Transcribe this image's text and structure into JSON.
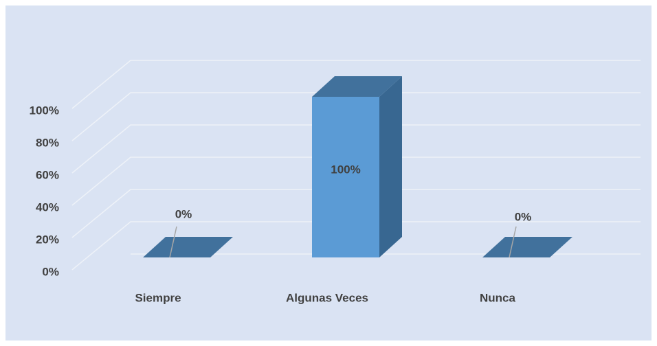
{
  "chart_data": {
    "type": "bar3d",
    "categories": [
      "Siempre",
      "Algunas Veces",
      "Nunca"
    ],
    "values": [
      0,
      100,
      0
    ],
    "value_labels": [
      "0%",
      "100%",
      "0%"
    ],
    "color": "#5b9bd5",
    "ylim": [
      0,
      100
    ],
    "yticks": [
      {
        "value": 0,
        "label": "0%"
      },
      {
        "value": 20,
        "label": "20%"
      },
      {
        "value": 40,
        "label": "40%"
      },
      {
        "value": 60,
        "label": "60%"
      },
      {
        "value": 80,
        "label": "80%"
      },
      {
        "value": 100,
        "label": "100%"
      }
    ],
    "grid": true
  }
}
